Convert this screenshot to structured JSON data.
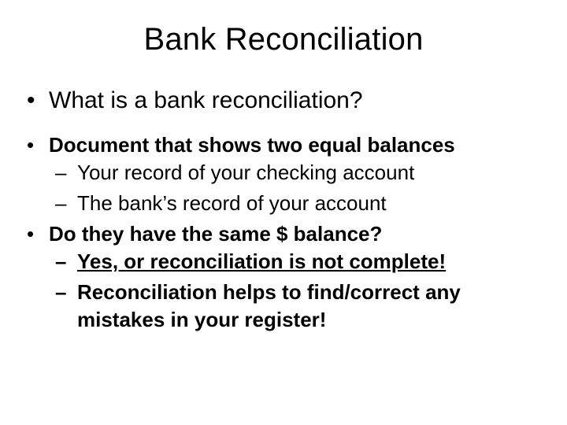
{
  "title": "Bank Reconciliation",
  "q": "What is a bank reconciliation?",
  "b1": "Document  that shows two equal balances",
  "b1s1": "Your record of your checking account",
  "b1s2": "The  bank’s record of your account",
  "b2": "Do they have the same $ balance?",
  "b2s1": "Yes, or reconciliation is not complete!",
  "b2s2": "Reconciliation helps to find/correct any mistakes in your register!"
}
